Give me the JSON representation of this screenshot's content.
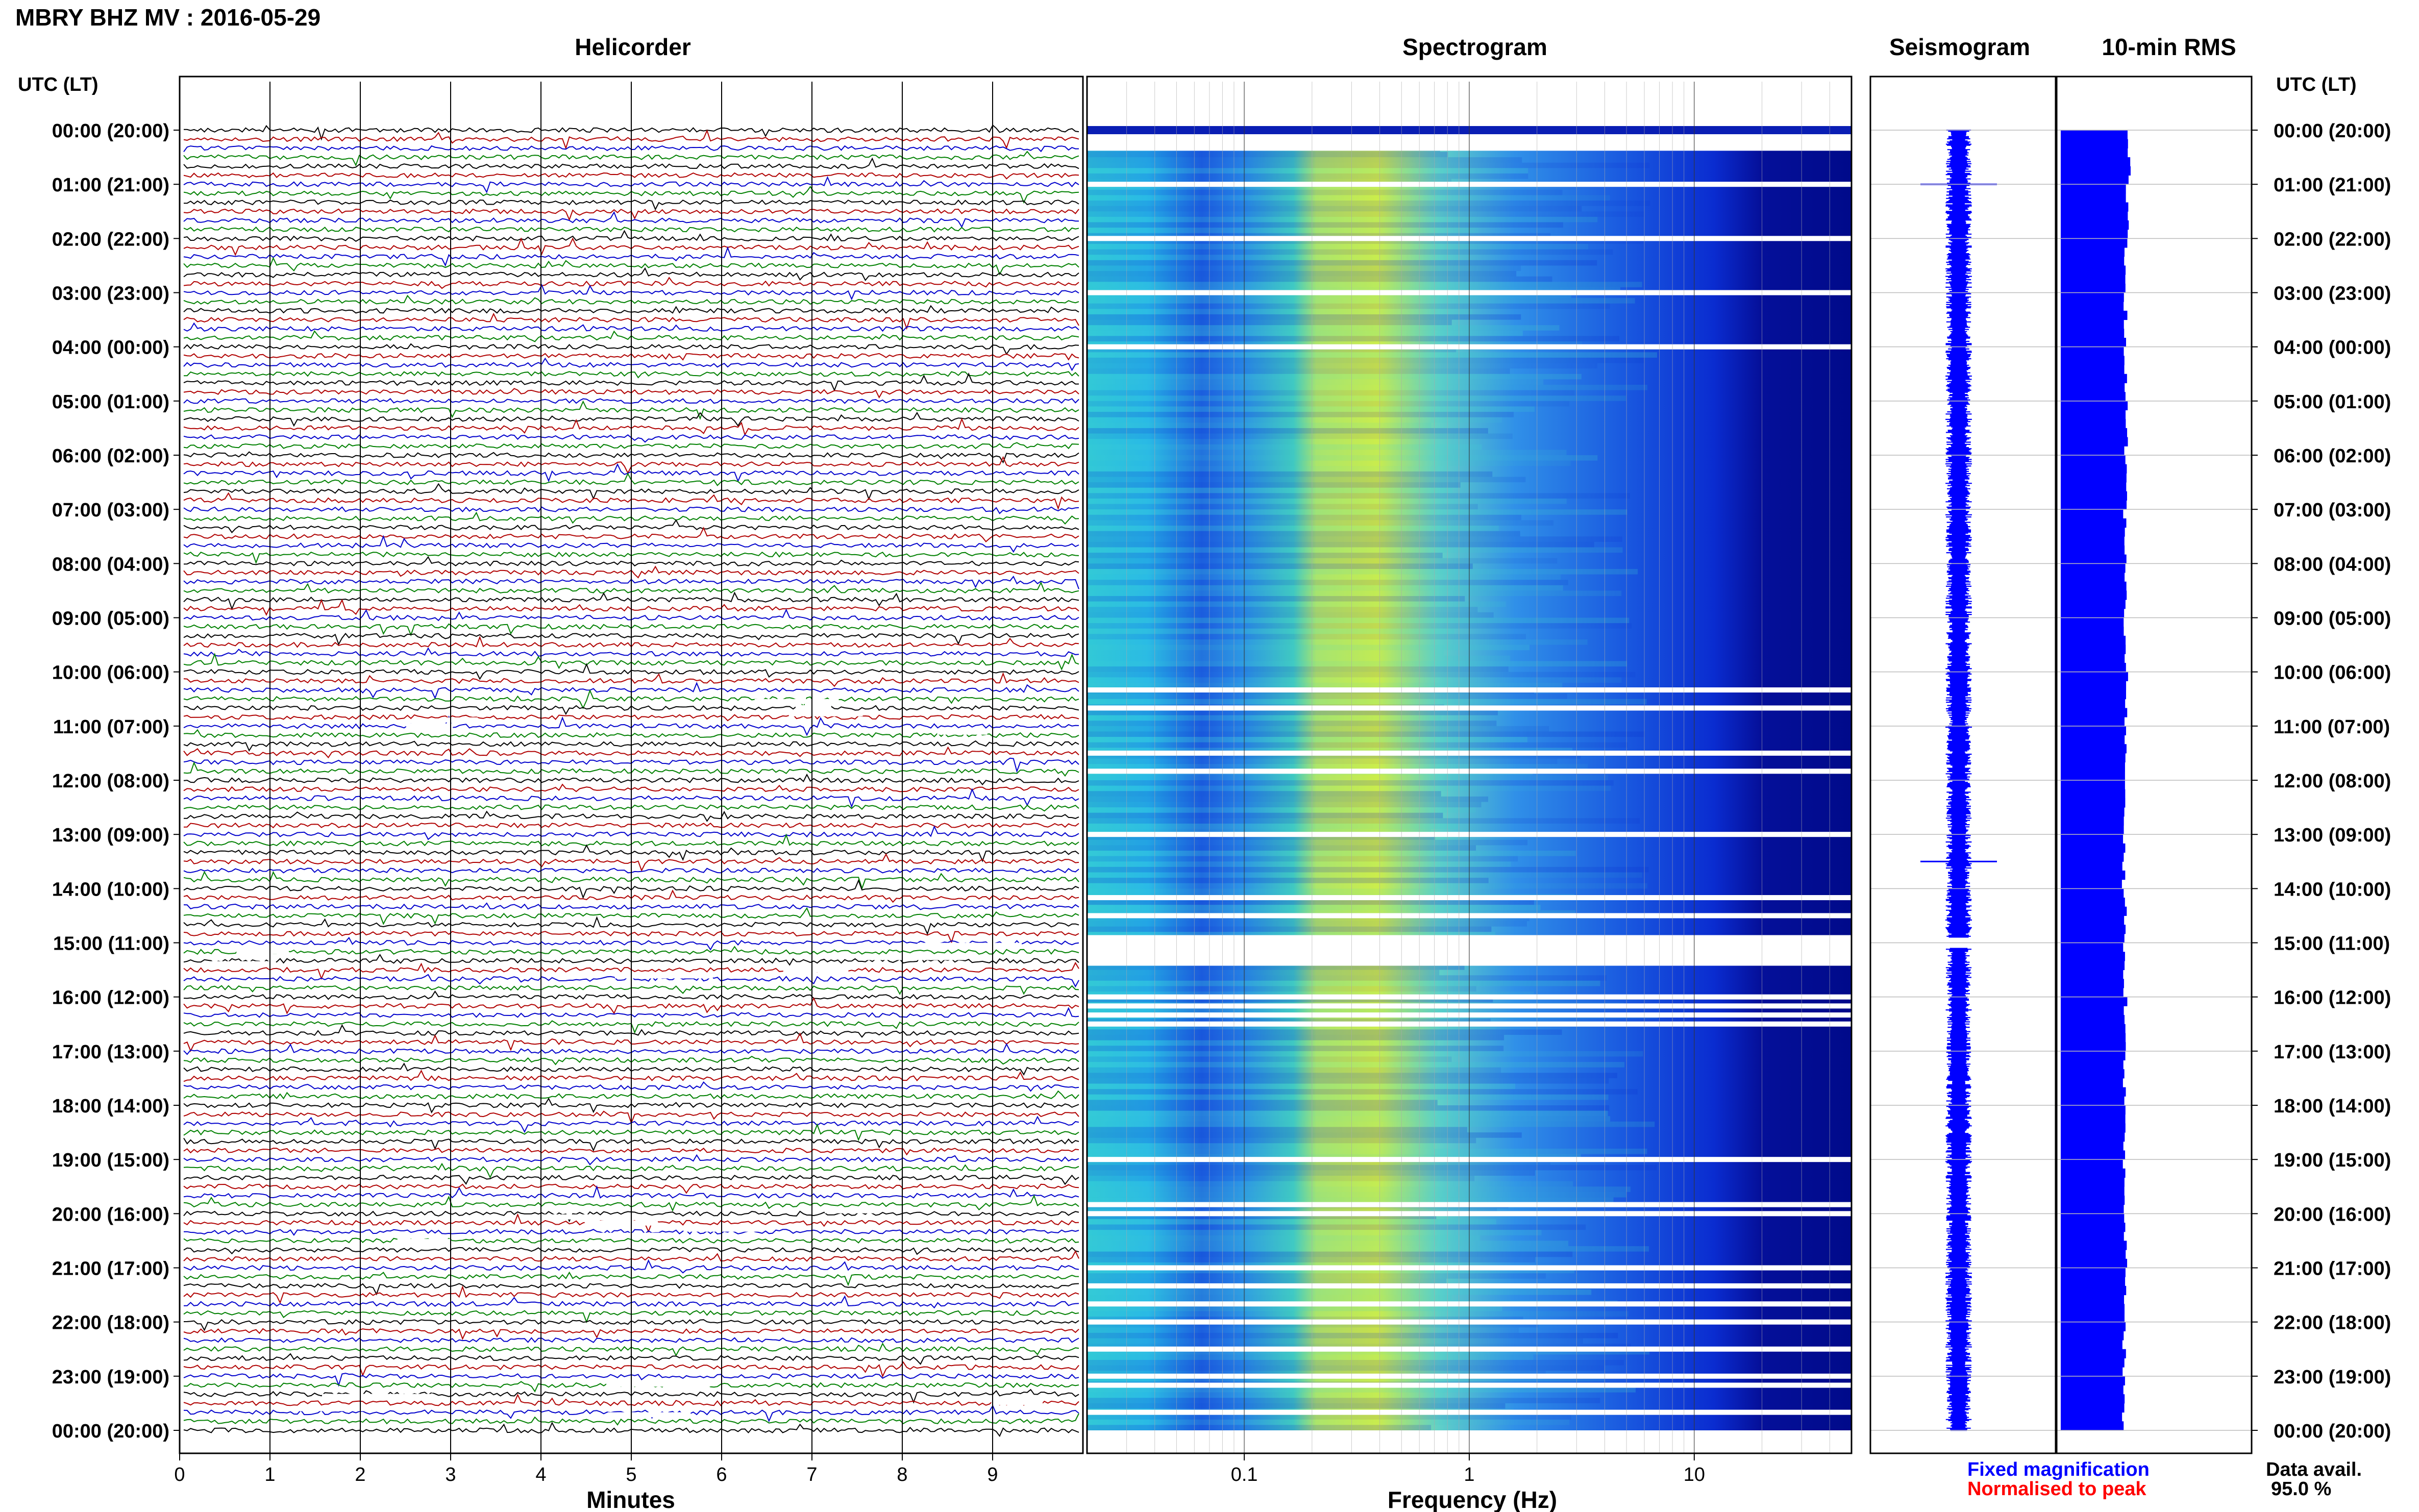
{
  "page_title": "MBRY BHZ MV : 2016-05-29",
  "time_axis_label": "UTC (LT)",
  "time_labels": [
    "00:00 (20:00)",
    "01:00 (21:00)",
    "02:00 (22:00)",
    "03:00 (23:00)",
    "04:00 (00:00)",
    "05:00 (01:00)",
    "06:00 (02:00)",
    "07:00 (03:00)",
    "08:00 (04:00)",
    "09:00 (05:00)",
    "10:00 (06:00)",
    "11:00 (07:00)",
    "12:00 (08:00)",
    "13:00 (09:00)",
    "14:00 (10:00)",
    "15:00 (11:00)",
    "16:00 (12:00)",
    "17:00 (13:00)",
    "18:00 (14:00)",
    "19:00 (15:00)",
    "20:00 (16:00)",
    "21:00 (17:00)",
    "22:00 (18:00)",
    "23:00 (19:00)",
    "00:00 (20:00)"
  ],
  "panels": {
    "helicorder": {
      "title": "Helicorder",
      "xlabel": "Minutes",
      "ticks": [
        "0",
        "1",
        "2",
        "3",
        "4",
        "5",
        "6",
        "7",
        "8",
        "9"
      ]
    },
    "spectrogram": {
      "title": "Spectrogram",
      "xlabel": "Frequency (Hz)",
      "ticks": [
        "0.1",
        "1",
        "10"
      ]
    },
    "seismogram": {
      "title": "Seismogram"
    },
    "rms": {
      "title": "10-min RMS"
    }
  },
  "legend": {
    "fixed": "Fixed magnification",
    "normalised": "Normalised to peak"
  },
  "data_availability": {
    "label": "Data avail.",
    "value": "95.0 %"
  },
  "colors": {
    "trace_cycle": [
      "#000000",
      "#b00000",
      "#0000cc",
      "#008000"
    ],
    "fixed_magnification": "#0000ff",
    "normalised_to_peak": "#ff0000",
    "rms_fill": "#0000ff",
    "seismogram_trace": "#0000ff"
  },
  "chart_data": [
    {
      "type": "line",
      "title": "Helicorder",
      "xlabel": "Minutes",
      "xlim": [
        0,
        10
      ],
      "rows_per_hour": 6,
      "hours": 24,
      "gap_hours_approx": [
        "15:00-15:20",
        "23:00-23:30"
      ],
      "note_events": [
        "01:00",
        "13:30",
        "23:00"
      ]
    },
    {
      "type": "heatmap",
      "title": "Spectrogram",
      "xlabel": "Frequency (Hz)",
      "x_scale": "log",
      "xlim": [
        0.02,
        50
      ],
      "colormap": "jet",
      "peak_band_hz": [
        0.2,
        0.6
      ],
      "data_gaps_utc": [
        "00:20",
        "01:00",
        "02:00",
        "03:00",
        "04:00",
        "10:20",
        "10:40",
        "11:30",
        "11:50",
        "13:00",
        "14:10",
        "14:30",
        "15:00",
        "16:00",
        "16:10",
        "16:20",
        "16:30",
        "19:00",
        "19:50",
        "20:00",
        "21:00",
        "21:20",
        "21:40",
        "22:00",
        "22:30",
        "23:00",
        "23:10",
        "23:40"
      ]
    },
    {
      "type": "line",
      "title": "Seismogram",
      "notable_spikes_utc": [
        "01:00",
        "13:30"
      ]
    },
    {
      "type": "bar",
      "title": "10-min RMS",
      "orientation": "horizontal",
      "relative_values_per_hour": [
        1.0,
        0.97,
        0.95,
        0.95,
        0.95,
        0.96,
        0.95,
        0.94,
        0.95,
        0.94,
        0.96,
        0.95,
        0.93,
        0.92,
        0.94,
        0.93,
        0.95,
        0.94,
        0.93,
        0.92,
        0.95,
        0.94,
        0.93,
        0.92,
        0.9
      ]
    }
  ]
}
